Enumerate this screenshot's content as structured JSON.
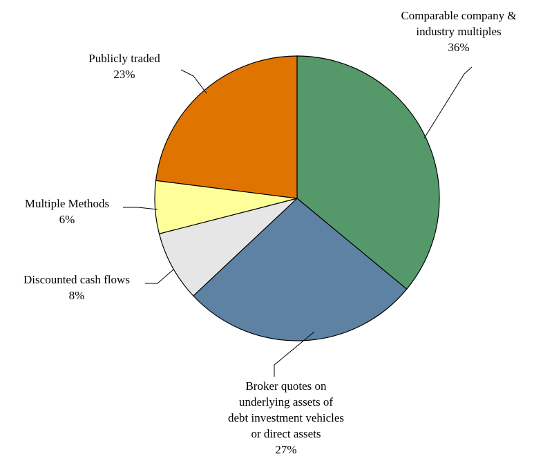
{
  "chart_data": {
    "type": "pie",
    "start_angle_deg": 0,
    "direction": "clockwise",
    "slices": [
      {
        "lines": [
          "Comparable company &",
          "industry multiples"
        ],
        "pct": "36%",
        "value": 36,
        "color": "#55996b"
      },
      {
        "lines": [
          "Broker quotes on",
          "underlying assets of",
          "debt investment vehicles",
          "or direct assets"
        ],
        "pct": "27%",
        "value": 27,
        "color": "#5e82a4"
      },
      {
        "lines": [
          "Discounted cash flows"
        ],
        "pct": "8%",
        "value": 8,
        "color": "#e6e6e6"
      },
      {
        "lines": [
          "Multiple Methods"
        ],
        "pct": "6%",
        "value": 6,
        "color": "#ffff99"
      },
      {
        "lines": [
          "Publicly traded"
        ],
        "pct": "23%",
        "value": 23,
        "color": "#e07400"
      }
    ]
  }
}
